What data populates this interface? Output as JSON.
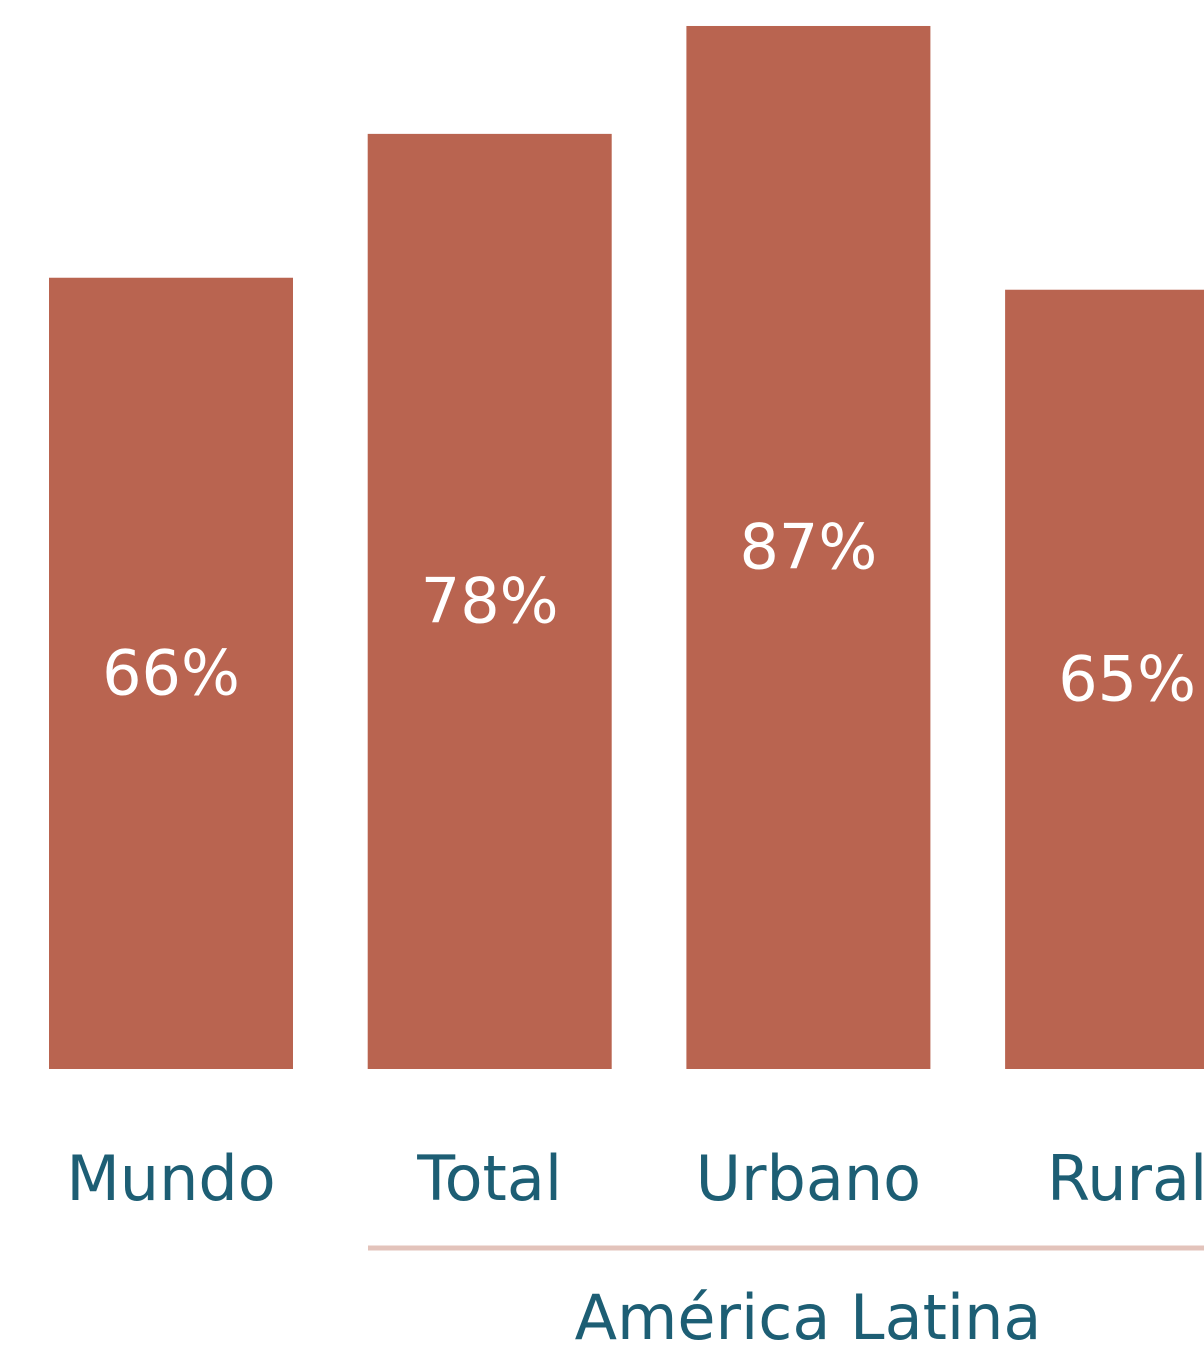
{
  "chart_data": {
    "type": "bar",
    "categories": [
      "Mundo",
      "Total",
      "Urbano",
      "Rural"
    ],
    "values": [
      66,
      78,
      87,
      65
    ],
    "value_labels": [
      "66%",
      "78%",
      "87%",
      "65%"
    ],
    "color": "#b96450",
    "ylim": [
      0,
      89
    ],
    "group_label": "América Latina"
  }
}
